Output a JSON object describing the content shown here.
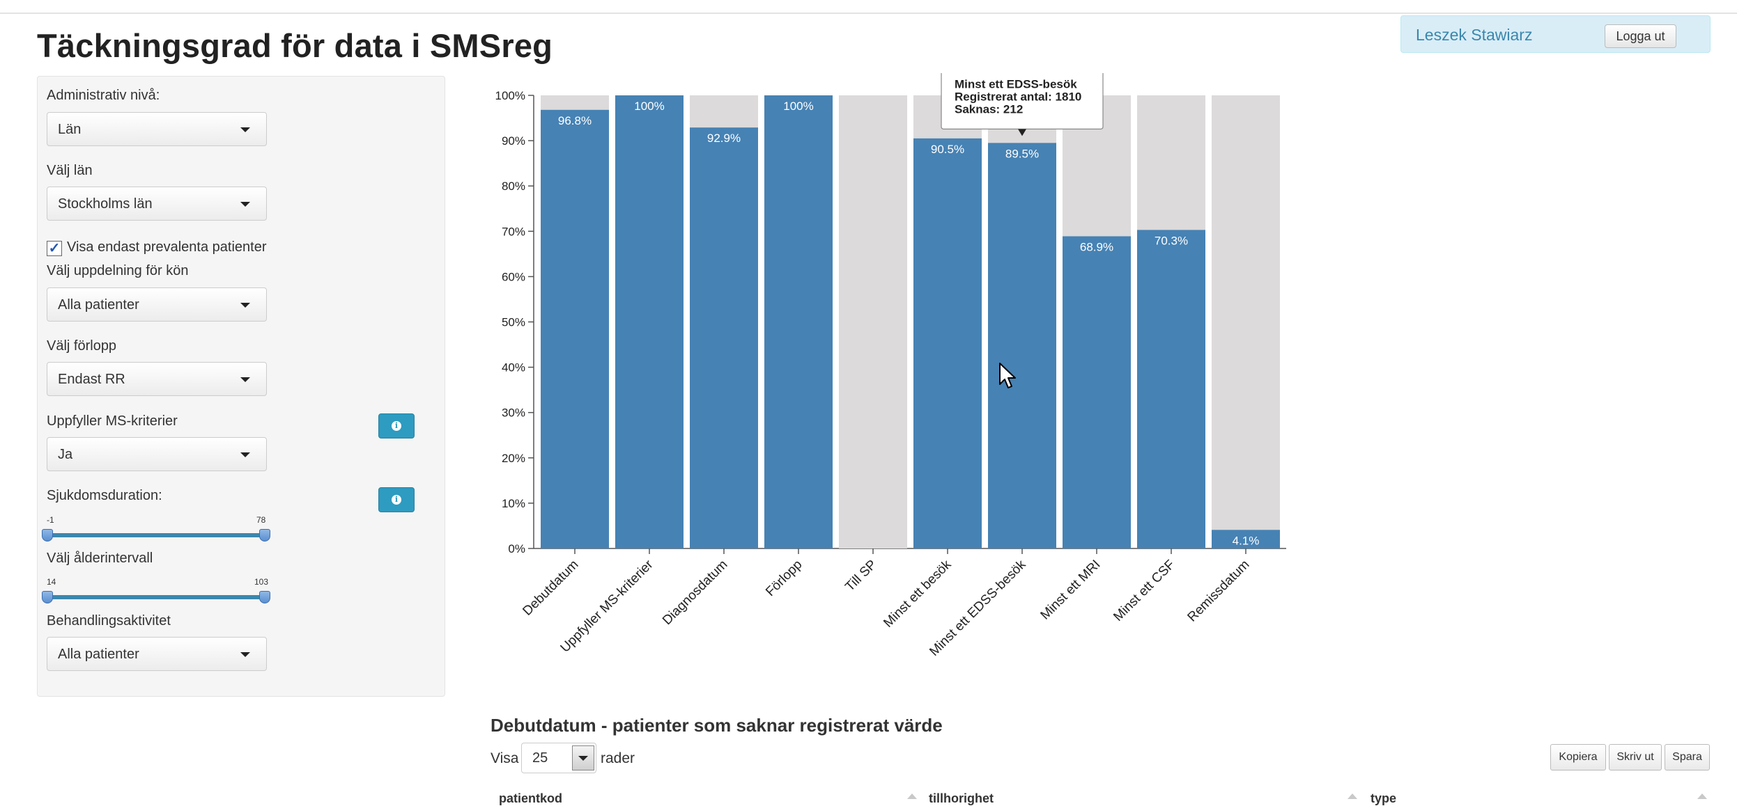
{
  "page": {
    "title": "Täckningsgrad för data i SMSreg"
  },
  "user": {
    "name": "Leszek Stawiarz",
    "logout_label": "Logga ut"
  },
  "sidebar": {
    "admin_level": {
      "label": "Administrativ nivå:",
      "value": "Län"
    },
    "county": {
      "label": "Välj län",
      "value": "Stockholms län"
    },
    "prevalent_checkbox": {
      "label": "Visa endast prevalenta patienter",
      "checked": true,
      "mark": "✓"
    },
    "gender_split": {
      "label": "Välj uppdelning för kön",
      "value": "Alla patienter"
    },
    "course": {
      "label": "Välj förlopp",
      "value": "Endast RR"
    },
    "ms_criteria": {
      "label": "Uppfyller MS-kriterier",
      "value": "Ja",
      "info_icon": "info-icon"
    },
    "duration": {
      "label": "Sjukdomsduration:",
      "min": "-1",
      "max": "78",
      "info_icon": "info-icon"
    },
    "age_interval": {
      "label": "Välj ålderintervall",
      "min": "14",
      "max": "103"
    },
    "treatment": {
      "label": "Behandlingsaktivitet",
      "value": "Alla patienter"
    }
  },
  "chart_data": {
    "type": "bar",
    "categories": [
      "Debutdatum",
      "Uppfyller MS-kriterier",
      "Diagnosdatum",
      "Förlopp",
      "Till SP",
      "Minst ett besök",
      "Minst ett EDSS-besök",
      "Minst ett MRI",
      "Minst ett CSF",
      "Remissdatum"
    ],
    "values": [
      96.8,
      100,
      92.9,
      100,
      0,
      90.5,
      89.5,
      68.9,
      70.3,
      4.1
    ],
    "value_labels": [
      "96.8%",
      "100%",
      "92.9%",
      "100%",
      "",
      "90.5%",
      "89.5%",
      "68.9%",
      "70.3%",
      "4.1%"
    ],
    "ylim": [
      0,
      100
    ],
    "yticks": [
      "0%",
      "10%",
      "20%",
      "30%",
      "40%",
      "50%",
      "60%",
      "70%",
      "80%",
      "90%",
      "100%"
    ],
    "stacked_background": true,
    "colors": {
      "filled": "#4682b4",
      "missing": "#dcdada"
    },
    "tooltip": {
      "category_index": 6,
      "title": "Minst ett EDSS-besök",
      "line1": "Registrerat antal: 1810",
      "line2": "Saknas: 212"
    }
  },
  "table_section": {
    "title": "Debutdatum - patienter som saknar registrerat värde",
    "show_label": "Visa",
    "page_length": "25",
    "rows_label": "rader",
    "buttons": {
      "copy": "Kopiera",
      "print": "Skriv ut",
      "save": "Spara"
    },
    "columns": [
      "patientkod",
      "tillhorighet",
      "type"
    ]
  }
}
